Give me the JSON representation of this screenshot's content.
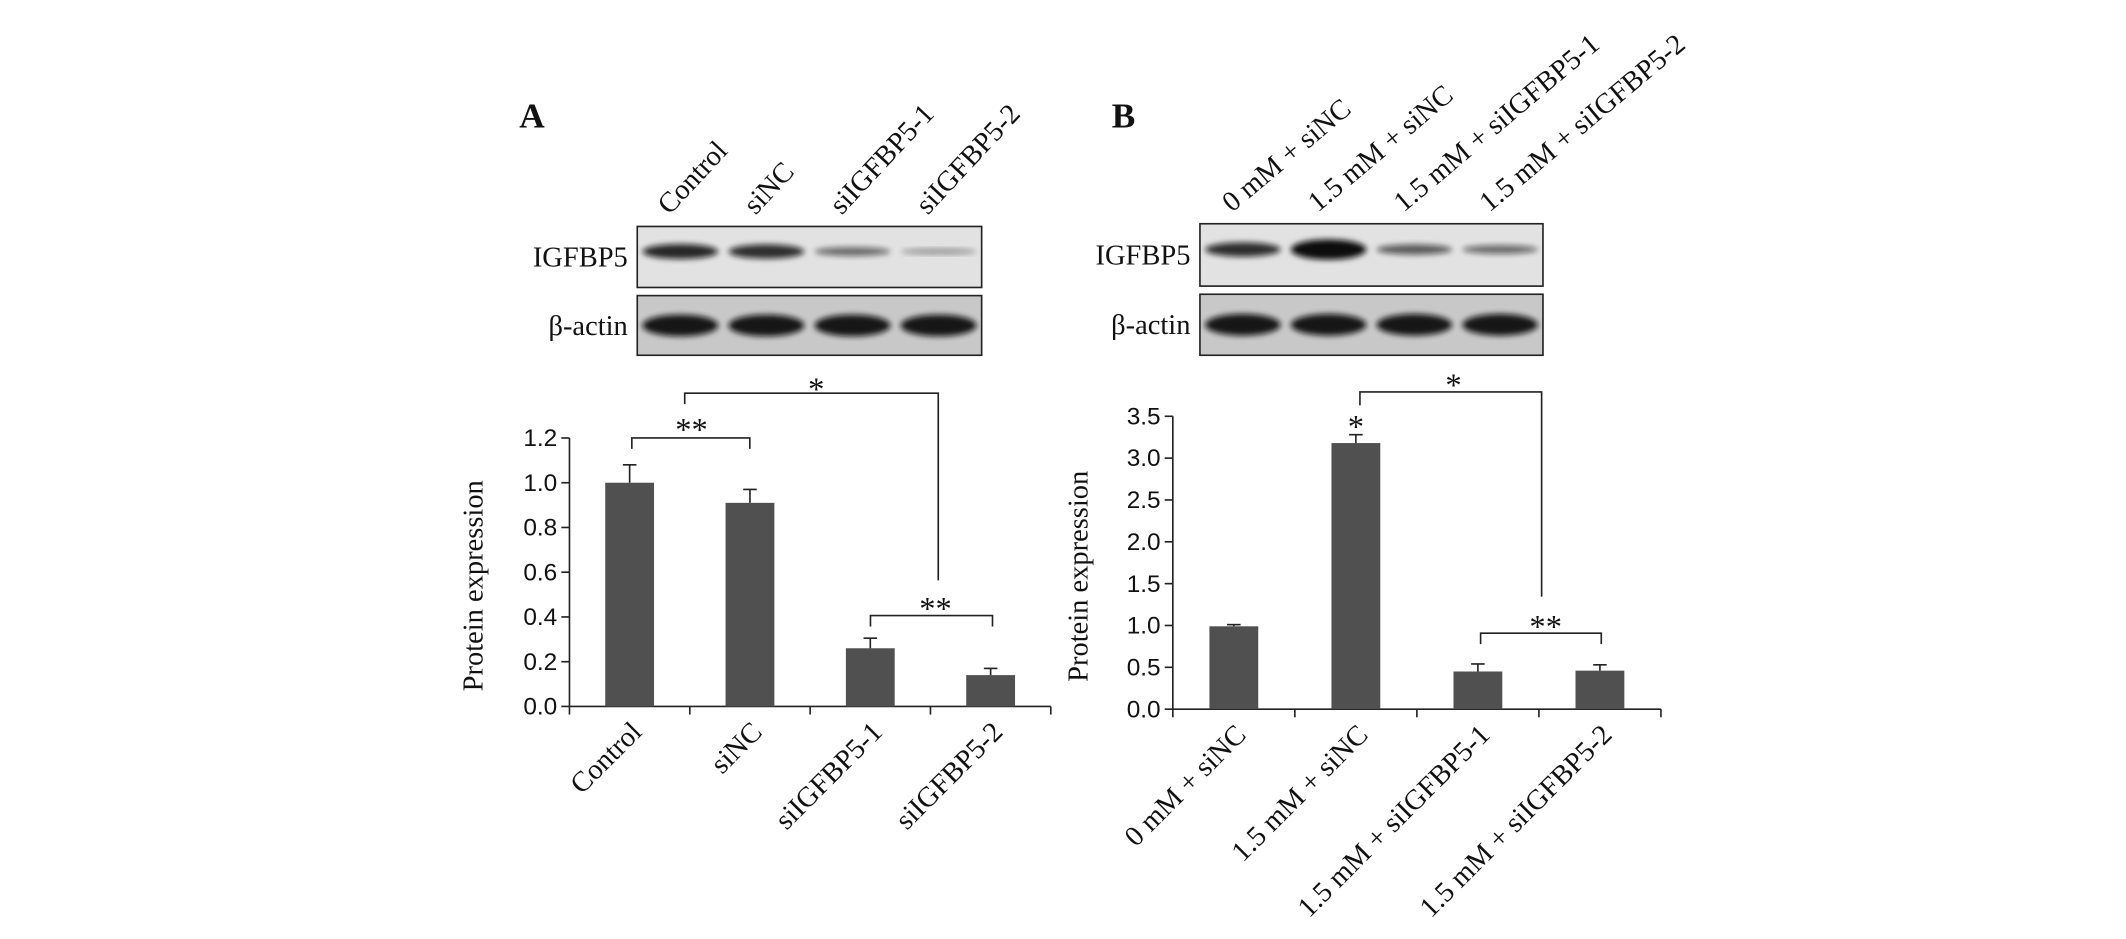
{
  "chart_data": [
    {
      "type": "bar",
      "panel": "A",
      "ylabel": "Protein expression",
      "categories": [
        "Control",
        "siNC",
        "siIGFBP5-1",
        "siIGFBP5-2"
      ],
      "values": [
        1.0,
        0.91,
        0.26,
        0.14
      ],
      "errors": [
        0.08,
        0.06,
        0.045,
        0.03
      ],
      "color": "#505050",
      "ylim": [
        0,
        1.2
      ],
      "yticks": [
        {
          "value": 0,
          "label": "0.0"
        },
        0.2,
        0.4,
        0.6,
        0.8,
        {
          "value": 1,
          "label": "1.0"
        },
        1.2
      ],
      "grid": false,
      "blot_rows": [
        "IGFBP5",
        "β-actin"
      ],
      "annotations": [
        "**",
        "*",
        "**"
      ]
    },
    {
      "type": "bar",
      "panel": "B",
      "ylabel": "Protein expression",
      "categories": [
        "0 mM + siNC",
        "1.5 mM + siNC",
        "1.5 mM + siIGFBP5-1",
        "1.5 mM + siIGFBP5-2"
      ],
      "values": [
        0.99,
        3.18,
        0.45,
        0.46
      ],
      "errors": [
        0.02,
        0.1,
        0.09,
        0.07
      ],
      "color": "#505050",
      "ylim": [
        0,
        3.5
      ],
      "yticks": [
        {
          "value": 0,
          "label": "0.0"
        },
        0.5,
        {
          "value": 1,
          "label": "1.0"
        },
        1.5,
        {
          "value": 2,
          "label": "2.0"
        },
        2.5,
        {
          "value": 3,
          "label": "3.0"
        },
        3.5
      ],
      "grid": false,
      "blot_rows": [
        "IGFBP5",
        "β-actin"
      ],
      "annotations": [
        "*",
        "*",
        "**"
      ]
    }
  ]
}
